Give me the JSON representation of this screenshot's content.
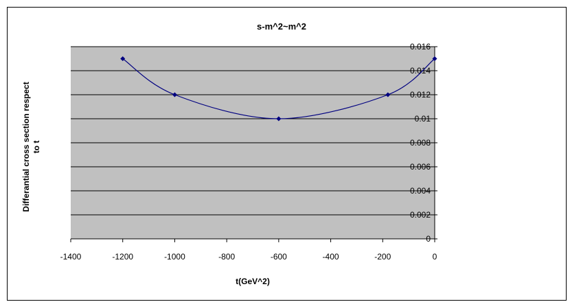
{
  "chart_data": {
    "type": "line",
    "title": "s-m^2~m^2",
    "xlabel": "t(GeV^2)",
    "ylabel_lines": [
      "Differantial cross section respect",
      "to   t"
    ],
    "xlim": [
      -1400,
      0
    ],
    "ylim": [
      0,
      0.016
    ],
    "x_ticks": [
      -1400,
      -1200,
      -1000,
      -800,
      -600,
      -400,
      -200,
      0
    ],
    "y_ticks": [
      0,
      0.002,
      0.004,
      0.006,
      0.008,
      0.01,
      0.012,
      0.014,
      0.016
    ],
    "x_tick_labels": [
      "-1400",
      "-1200",
      "-1000",
      "-800",
      "-600",
      "-400",
      "-200",
      "0"
    ],
    "y_tick_labels": [
      "0",
      "0.002",
      "0.004",
      "0.006",
      "0.008",
      "0.01",
      "0.012",
      "0.014",
      "0.016"
    ],
    "grid": true,
    "legend": "none",
    "colors": {
      "plot_background": "#c0c0c0",
      "series": "#000080",
      "gridline": "#000000"
    },
    "series": [
      {
        "x": [
          -1200,
          -1000,
          -600,
          -180,
          0
        ],
        "y": [
          0.015,
          0.012,
          0.01,
          0.012,
          0.015
        ]
      }
    ]
  }
}
